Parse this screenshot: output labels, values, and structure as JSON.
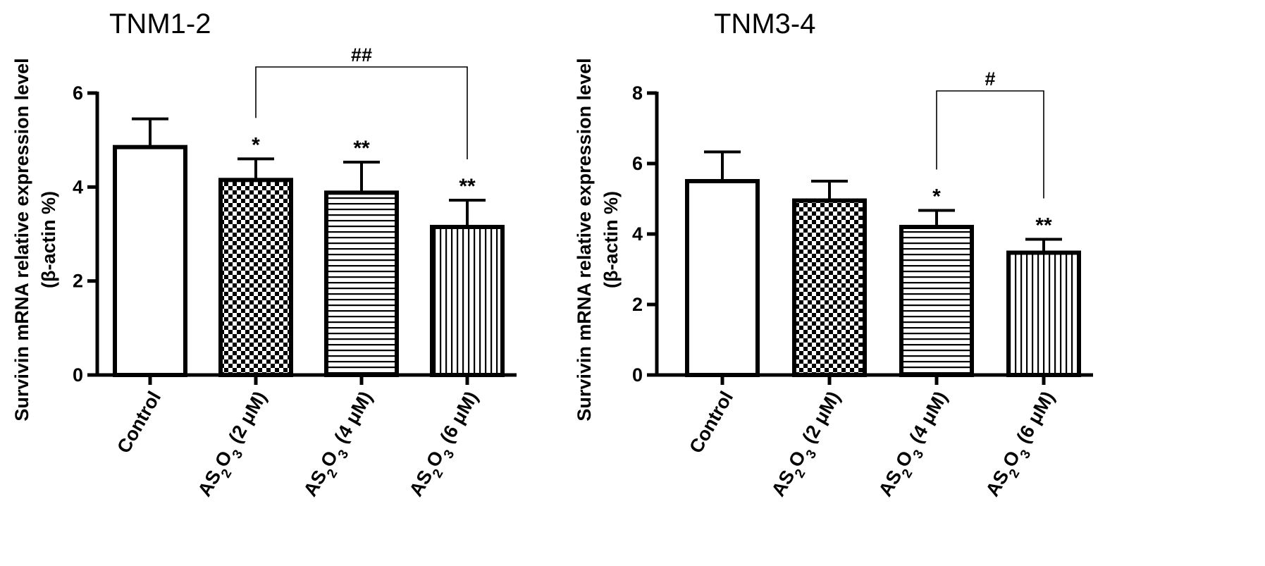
{
  "chart_data": [
    {
      "type": "bar",
      "title": "TNM1-2",
      "ylabel_line1": "Survivin mRNA relative expression level",
      "ylabel_line2": "(β-actin %)",
      "ylim": [
        0,
        6
      ],
      "yticks": [
        "0",
        "2",
        "4",
        "6"
      ],
      "categories": [
        {
          "label": "Control",
          "base": "",
          "sub": "",
          "rest": ""
        },
        {
          "label": "AS2O3 (2μM)",
          "base": "AS",
          "sub": "2",
          "mid": "O",
          "sub2": "3",
          "rest": " (2 μM)"
        },
        {
          "label": "AS2O3 (4μM)",
          "base": "AS",
          "sub": "2",
          "mid": "O",
          "sub2": "3",
          "rest": " (4 μM)"
        },
        {
          "label": "AS2O3 (6μM)",
          "base": "AS",
          "sub": "2",
          "mid": "O",
          "sub2": "3",
          "rest": " (6 μM)"
        }
      ],
      "values": [
        4.85,
        4.15,
        3.88,
        3.15
      ],
      "errors": [
        0.6,
        0.45,
        0.65,
        0.57
      ],
      "patterns": [
        "none",
        "checker",
        "horizontal",
        "vertical"
      ],
      "significance": [
        "",
        "*",
        "**",
        "**"
      ],
      "bracket": {
        "from": 1,
        "to": 3,
        "label": "##"
      }
    },
    {
      "type": "bar",
      "title": "TNM3-4",
      "ylabel_line1": "Survivin mRNA relative expression level",
      "ylabel_line2": "(β-actin %)",
      "ylim": [
        0,
        8
      ],
      "yticks": [
        "0",
        "2",
        "4",
        "6",
        "8"
      ],
      "categories": [
        {
          "label": "Control",
          "base": "",
          "sub": "",
          "rest": ""
        },
        {
          "label": "AS2O3 (2μM)",
          "base": "AS",
          "sub": "2",
          "mid": "O",
          "sub2": "3",
          "rest": " (2 μM)"
        },
        {
          "label": "AS2O3 (4μM)",
          "base": "AS",
          "sub": "2",
          "mid": "O",
          "sub2": "3",
          "rest": " (4 μM)"
        },
        {
          "label": "AS2O3 (6μM)",
          "base": "AS",
          "sub": "2",
          "mid": "O",
          "sub2": "3",
          "rest": " (6 μM)"
        }
      ],
      "values": [
        5.5,
        4.95,
        4.2,
        3.47
      ],
      "errors": [
        0.83,
        0.55,
        0.47,
        0.38
      ],
      "patterns": [
        "none",
        "checker",
        "horizontal",
        "vertical"
      ],
      "significance": [
        "",
        "",
        "*",
        "**"
      ],
      "bracket": {
        "from": 2,
        "to": 3,
        "label": "#"
      }
    }
  ]
}
